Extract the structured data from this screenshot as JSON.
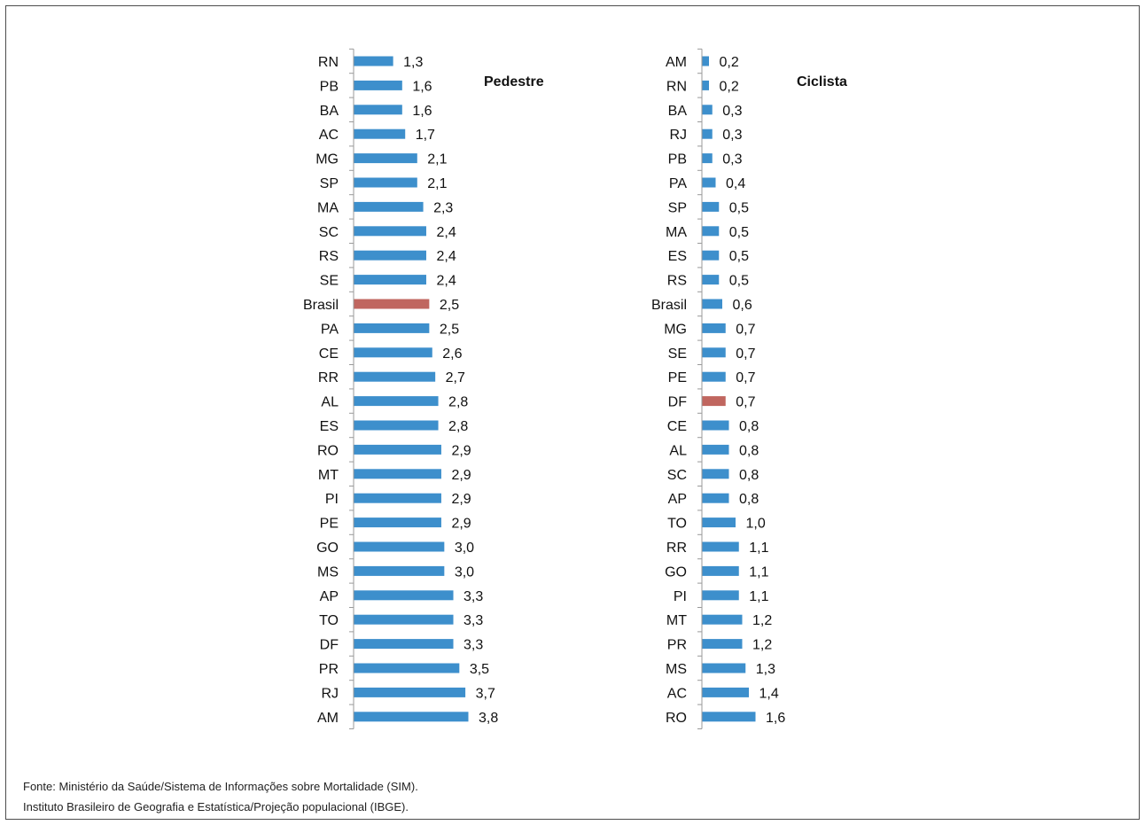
{
  "chart_data": [
    {
      "type": "bar",
      "orientation": "horizontal",
      "title": "Pedestre",
      "categories": [
        "RN",
        "PB",
        "BA",
        "AC",
        "MG",
        "SP",
        "MA",
        "SC",
        "RS",
        "SE",
        "Brasil",
        "PA",
        "CE",
        "RR",
        "AL",
        "ES",
        "RO",
        "MT",
        "PI",
        "PE",
        "GO",
        "MS",
        "AP",
        "TO",
        "DF",
        "PR",
        "RJ",
        "AM"
      ],
      "values": [
        1.3,
        1.6,
        1.6,
        1.7,
        2.1,
        2.1,
        2.3,
        2.4,
        2.4,
        2.4,
        2.5,
        2.5,
        2.6,
        2.7,
        2.8,
        2.8,
        2.9,
        2.9,
        2.9,
        2.9,
        3.0,
        3.0,
        3.3,
        3.3,
        3.3,
        3.5,
        3.7,
        3.8
      ],
      "value_labels": [
        "1,3",
        "1,6",
        "1,6",
        "1,7",
        "2,1",
        "2,1",
        "2,3",
        "2,4",
        "2,4",
        "2,4",
        "2,5",
        "2,5",
        "2,6",
        "2,7",
        "2,8",
        "2,8",
        "2,9",
        "2,9",
        "2,9",
        "2,9",
        "3,0",
        "3,0",
        "3,3",
        "3,3",
        "3,3",
        "3,5",
        "3,7",
        "3,8"
      ],
      "highlight": "Brasil",
      "colors": {
        "bar": "#3d8fcc",
        "highlight": "#c0665f"
      },
      "xlim": [
        0,
        3.8
      ]
    },
    {
      "type": "bar",
      "orientation": "horizontal",
      "title": "Ciclista",
      "categories": [
        "AM",
        "RN",
        "BA",
        "RJ",
        "PB",
        "PA",
        "SP",
        "MA",
        "ES",
        "RS",
        "Brasil",
        "MG",
        "SE",
        "PE",
        "DF",
        "CE",
        "AL",
        "SC",
        "AP",
        "TO",
        "RR",
        "GO",
        "PI",
        "MT",
        "PR",
        "MS",
        "AC",
        "RO"
      ],
      "values": [
        0.2,
        0.2,
        0.3,
        0.3,
        0.3,
        0.4,
        0.5,
        0.5,
        0.5,
        0.5,
        0.6,
        0.7,
        0.7,
        0.7,
        0.7,
        0.8,
        0.8,
        0.8,
        0.8,
        1.0,
        1.1,
        1.1,
        1.1,
        1.2,
        1.2,
        1.3,
        1.4,
        1.6
      ],
      "value_labels": [
        "0,2",
        "0,2",
        "0,3",
        "0,3",
        "0,3",
        "0,4",
        "0,5",
        "0,5",
        "0,5",
        "0,5",
        "0,6",
        "0,7",
        "0,7",
        "0,7",
        "0,7",
        "0,8",
        "0,8",
        "0,8",
        "0,8",
        "1,0",
        "1,1",
        "1,1",
        "1,1",
        "1,2",
        "1,2",
        "1,3",
        "1,4",
        "1,6"
      ],
      "highlight": "DF",
      "colors": {
        "bar": "#3d8fcc",
        "highlight": "#c0665f"
      },
      "xlim": [
        0,
        1.6
      ]
    }
  ],
  "source": {
    "line1": "Fonte: Ministério da Saúde/Sistema de Informações sobre Mortalidade (SIM).",
    "line2": "Instituto Brasileiro de Geografia e Estatística/Projeção populacional (IBGE)."
  }
}
